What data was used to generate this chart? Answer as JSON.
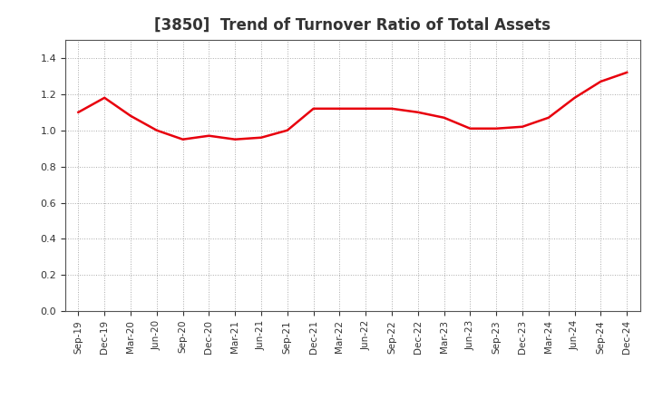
{
  "title": "[3850]  Trend of Turnover Ratio of Total Assets",
  "title_fontsize": 12,
  "line_color": "#e8000d",
  "line_width": 1.8,
  "background_color": "#ffffff",
  "plot_bg_color": "#ffffff",
  "grid_color": "#aaaaaa",
  "ylim": [
    0.0,
    1.5
  ],
  "yticks": [
    0.0,
    0.2,
    0.4,
    0.6,
    0.8,
    1.0,
    1.2,
    1.4
  ],
  "x_labels": [
    "Sep-19",
    "Dec-19",
    "Mar-20",
    "Jun-20",
    "Sep-20",
    "Dec-20",
    "Mar-21",
    "Jun-21",
    "Sep-21",
    "Dec-21",
    "Mar-22",
    "Jun-22",
    "Sep-22",
    "Dec-22",
    "Mar-23",
    "Jun-23",
    "Sep-23",
    "Dec-23",
    "Mar-24",
    "Jun-24",
    "Sep-24",
    "Dec-24"
  ],
  "values": [
    1.1,
    1.18,
    1.08,
    1.0,
    0.95,
    0.97,
    0.95,
    0.96,
    1.0,
    1.12,
    1.12,
    1.12,
    1.12,
    1.1,
    1.07,
    1.01,
    1.01,
    1.02,
    1.07,
    1.18,
    1.27,
    1.32
  ]
}
